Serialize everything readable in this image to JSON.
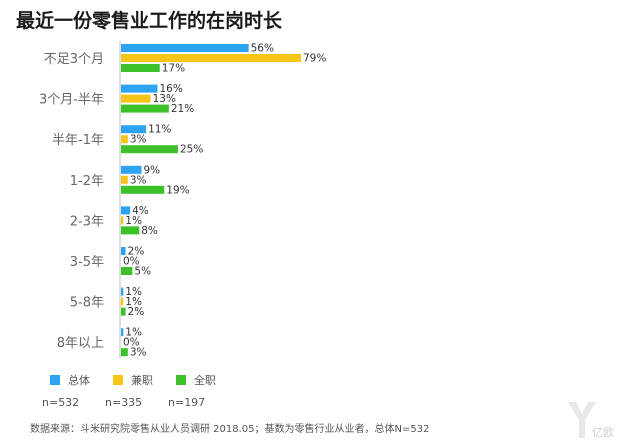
{
  "chart_data": {
    "type": "bar",
    "orientation": "horizontal",
    "title": "最近一份零售业工作的在岗时长",
    "categories": [
      "不足3个月",
      "3个月-半年",
      "半年-1年",
      "1-2年",
      "2-3年",
      "3-5年",
      "5-8年",
      "8年以上"
    ],
    "series": [
      {
        "name": "总体",
        "sample": "n=532",
        "color": "#2ea3f2",
        "values": [
          56,
          16,
          11,
          9,
          4,
          2,
          1,
          1
        ]
      },
      {
        "name": "兼职",
        "sample": "n=335",
        "color": "#f5c518",
        "values": [
          79,
          13,
          3,
          3,
          1,
          0,
          1,
          0
        ]
      },
      {
        "name": "全职",
        "sample": "n=197",
        "color": "#3cc12a",
        "values": [
          17,
          21,
          25,
          19,
          8,
          5,
          2,
          3
        ]
      }
    ],
    "value_suffix": "%",
    "xlim": [
      0,
      100
    ],
    "grid": false,
    "legend_position": "bottom-left"
  },
  "source_note": "数据来源：斗米研究院零售从业人员调研 2018.05；基数为零售行业从业者，总体N=532",
  "watermark_text": "亿欧"
}
